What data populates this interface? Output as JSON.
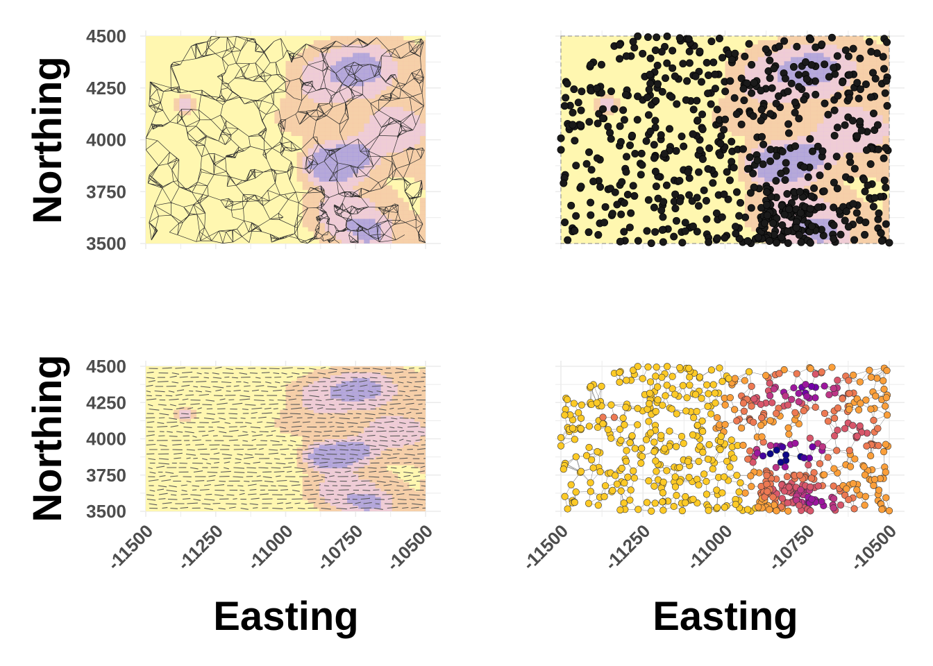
{
  "chart_data": [
    {
      "type": "heatmap",
      "panel": "top-left",
      "description_layer": "surface with triangle mesh overlay",
      "ylabel": "Northing",
      "xlabel": "",
      "xlim": [
        -11500,
        -10500
      ],
      "ylim": [
        3500,
        4500
      ],
      "yticks": [
        "4500",
        "4250",
        "4000",
        "3750",
        "3500"
      ],
      "xticks": [],
      "grid": true
    },
    {
      "type": "scatter",
      "panel": "top-right",
      "description_layer": "sample points over surface",
      "ylabel": "",
      "xlabel": "",
      "xlim": [
        -11500,
        -10500
      ],
      "ylim": [
        3500,
        4500
      ],
      "yticks": [],
      "xticks": [],
      "point_color": "#1a1a1a",
      "approx_point_count": 700,
      "grid": true
    },
    {
      "type": "heatmap",
      "panel": "bottom-left",
      "description_layer": "surface with dashed contour overlay",
      "ylabel": "Northing",
      "xlabel": "Easting",
      "xlim": [
        -11500,
        -10500
      ],
      "ylim": [
        3500,
        4500
      ],
      "yticks": [
        "4500",
        "4250",
        "4000",
        "3750",
        "3500"
      ],
      "xticks": [
        "-11500",
        "-11250",
        "-11000",
        "-10750",
        "-10500"
      ],
      "grid": true
    },
    {
      "type": "scatter",
      "panel": "bottom-right",
      "description_layer": "points colored by value over mesh",
      "ylabel": "",
      "xlabel": "Easting",
      "xlim": [
        -11500,
        -10500
      ],
      "ylim": [
        3500,
        4500
      ],
      "yticks": [],
      "xticks": [
        "-11500",
        "-11250",
        "-11000",
        "-10750",
        "-10500"
      ],
      "color_scale": [
        "#f0f921",
        "#fdca26",
        "#fb9f3a",
        "#ed7953",
        "#d8576b",
        "#bd3786",
        "#9c179e",
        "#7201a8",
        "#46039f",
        "#0d0887"
      ],
      "grid": true
    }
  ],
  "surface": {
    "base_color": "#fff7b0",
    "high_color": "#f5c9a8",
    "pink_color": "#ecc6dc",
    "low_color": "#a99be0"
  }
}
